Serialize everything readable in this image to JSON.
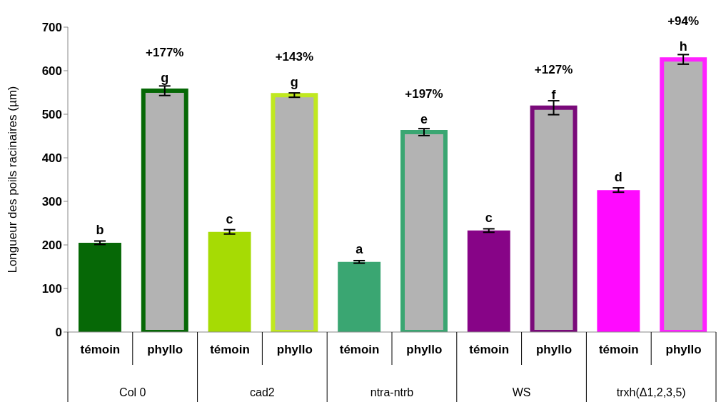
{
  "chart_data": {
    "type": "bar",
    "ylabel": "Longueur des poils racinaires (µm)",
    "categories": [
      "Col 0",
      "cad2",
      "ntra-ntrb",
      "WS",
      "trxh(Δ1,2,3,5)"
    ],
    "series": [
      {
        "name": "témoin",
        "colors": [
          "#066806",
          "#a6db04",
          "#3aa672",
          "#870487",
          "#ff0aff"
        ],
        "values": [
          205,
          230,
          161,
          233,
          326
        ],
        "errors": [
          4,
          5,
          3,
          4,
          5
        ],
        "value_labels": [
          "b",
          "c",
          "a",
          "c",
          "d"
        ]
      },
      {
        "name": "phyllo",
        "colors": [
          "#066806",
          "#c0e820",
          "#3aa672",
          "#7a0a7a",
          "#ff22ff"
        ],
        "values": [
          554,
          544,
          459,
          515,
          626
        ],
        "errors": [
          11,
          5,
          8,
          16,
          11
        ],
        "value_labels": [
          "g",
          "g",
          "e",
          "f",
          "h"
        ]
      }
    ],
    "annotations": [
      "+177%",
      "+143%",
      "+197%",
      "+127%",
      "+94%"
    ],
    "ylim": [
      0,
      700
    ],
    "yticks": [
      0,
      100,
      200,
      300,
      400,
      500,
      600,
      700
    ]
  }
}
